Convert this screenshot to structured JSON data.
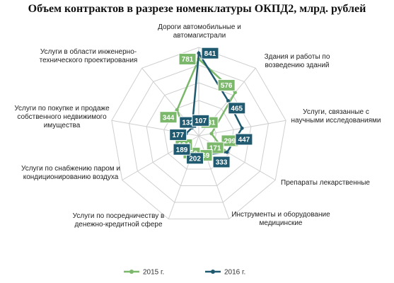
{
  "chart_data": {
    "type": "radar",
    "title": "Объем контрактов в разрезе номенклатуры ОКПД2, млрд. рублей",
    "categories": [
      "Дороги автомобильные и автомагистрали",
      "Здания и работы по возведению зданий",
      "Услуги, связанные с научными исследованиями",
      "Препараты лекарственные",
      "Инструменты и оборудование медицинские",
      "Услуги по посредничеству в денежно-кредитной сфере",
      "Услуги по снабжению паром и кондиционированию воздуха",
      "Услуги по покупке и продаже собственного недвижимого имущества",
      "Услуги в области инженерно-технического проектирования"
    ],
    "series": [
      {
        "name": "2015 г.",
        "color": "#7bb86b",
        "values": [
          781,
          576,
          131,
          299,
          171,
          169,
          150,
          134,
          344
        ]
      },
      {
        "name": "2016 г.",
        "color": "#1f5a70",
        "values": [
          841,
          465,
          447,
          333,
          202,
          189,
          177,
          132,
          107
        ]
      }
    ],
    "rlim": [
      0,
      900
    ],
    "rticks": [
      0,
      180,
      360,
      540,
      720,
      900
    ],
    "grid": true,
    "legend": "bottom"
  }
}
